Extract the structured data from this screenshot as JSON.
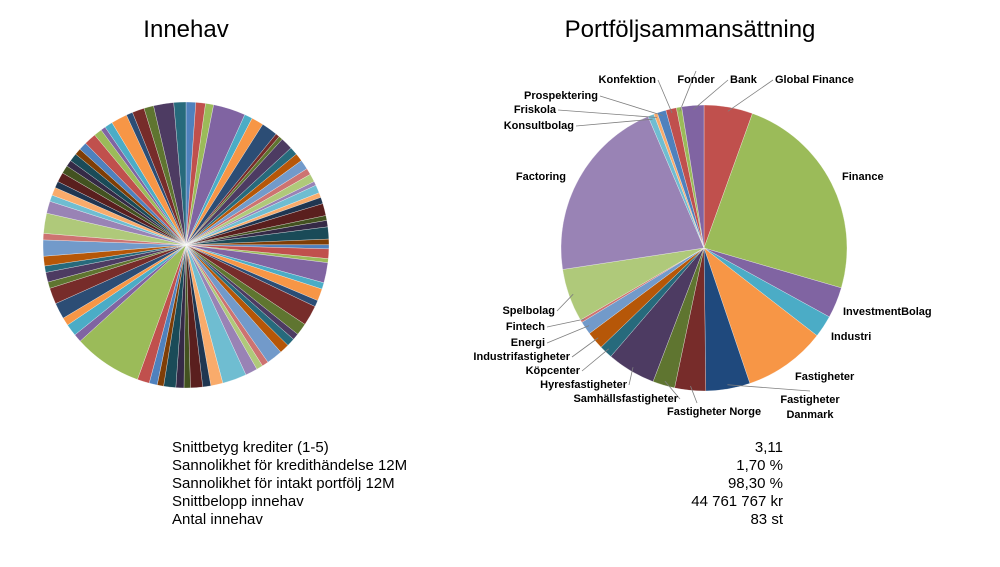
{
  "chart_data": [
    {
      "type": "pie",
      "title": "Innehav",
      "values": [
        1.2,
        1.2,
        1.0,
        4.0,
        1.0,
        1.5,
        2.0,
        0.5,
        0.5,
        1.5,
        1.0,
        1.0,
        1.2,
        0.8,
        1.0,
        0.5,
        1.0,
        0.6,
        0.8,
        1.5,
        0.6,
        0.8,
        1.5,
        0.7,
        0.5,
        1.2,
        0.5,
        2.5,
        0.8,
        1.5,
        0.8,
        2.5,
        1.5,
        0.8,
        1.0,
        1.2,
        2.0,
        0.8,
        0.8,
        1.5,
        3.0,
        1.5,
        1.0,
        1.5,
        0.8,
        1.0,
        1.5,
        0.8,
        1.0,
        1.5,
        8.5,
        1.0,
        1.5,
        1.0,
        2.0,
        2.0,
        0.8,
        1.2,
        0.8,
        1.2,
        2.0,
        0.8,
        2.5,
        1.5,
        0.8,
        1.0,
        0.8,
        1.2,
        1.0,
        0.8,
        1.0,
        0.8,
        1.0,
        1.5,
        1.0,
        0.6,
        1.0,
        2.0,
        0.8,
        1.5,
        1.2,
        2.5,
        1.5
      ],
      "colors": [
        "#4F81BD",
        "#C0504D",
        "#9BBB59",
        "#8064A2",
        "#4BACC6",
        "#F79646",
        "#2C4D75",
        "#772C2A",
        "#5F7530",
        "#4D3B62",
        "#276A7C",
        "#B65708",
        "#729ACA",
        "#CD7371",
        "#AFC97A",
        "#9983B5",
        "#6FBDD1",
        "#F9AB6B",
        "#1F3651",
        "#5A1F1E",
        "#435220",
        "#352A46",
        "#1A4B58",
        "#7F3E06"
      ]
    },
    {
      "type": "pie",
      "title": "Portföljsammansättning",
      "categories": [
        "Global Finance",
        "Finance",
        "InvestmentBolag",
        "Industri",
        "Fastigheter",
        "Fastigheter Danmark",
        "Fastigheter Norge",
        "Samhällsfastigheter",
        "Hyresfastigheter",
        "Köpcenter",
        "Industrifastigheter",
        "Energi",
        "Fintech",
        "Spelbolag",
        "Factoring",
        "Konsultbolag",
        "Friskola",
        "Prospektering",
        "Konfektion",
        "Fonder",
        "Bank"
      ],
      "values": [
        5.5,
        24,
        3.5,
        2.5,
        9.3,
        5,
        3.5,
        2.5,
        5.5,
        1.5,
        2,
        1.5,
        0.3,
        6,
        21,
        0.7,
        0.4,
        1.0,
        1.2,
        0.6,
        2.5
      ],
      "colors": [
        "#C0504D",
        "#9BBB59",
        "#8064A2",
        "#4BACC6",
        "#F79646",
        "#1F497D",
        "#772C2A",
        "#5F7530",
        "#4D3B62",
        "#276A7C",
        "#B65708",
        "#729ACA",
        "#CD7371",
        "#AFC97A",
        "#9983B5",
        "#6FBDD1",
        "#F9AB6B",
        "#4F81BD",
        "#C0504D",
        "#9BBB59",
        "#8064A2"
      ]
    }
  ],
  "table": {
    "rows": [
      [
        "Snittbetyg krediter (1-5)",
        "3,11"
      ],
      [
        "Sannolikhet för kredithändelse 12M",
        "1,70 %"
      ],
      [
        "Sannolikhet för intakt portfölj 12M",
        "98,30 %"
      ],
      [
        "Snittbelopp innehav",
        "44 761 767 kr"
      ],
      [
        "Antal innehav",
        "83 st"
      ]
    ]
  }
}
